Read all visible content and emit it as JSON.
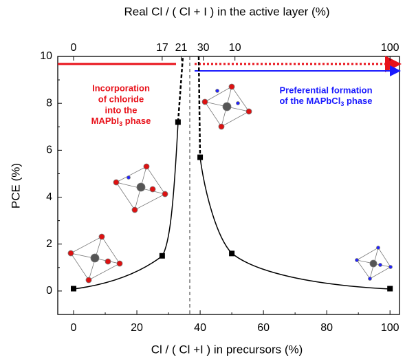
{
  "chart_data": {
    "type": "scatter",
    "title": "Real Cl / ( Cl + I ) in the active layer (%)",
    "x_label": "Cl / ( Cl +I ) in precursors (%)",
    "y_label": "PCE (%)",
    "x": [
      0,
      28,
      33,
      40,
      50,
      100
    ],
    "values": [
      0.1,
      1.5,
      7.2,
      5.7,
      1.6,
      0.1
    ],
    "color": "#000000",
    "xlim": [
      -5,
      103
    ],
    "ylim": [
      -1,
      10
    ],
    "xticks": [
      0,
      20,
      40,
      60,
      80,
      100
    ],
    "yticks": [
      0,
      2,
      4,
      6,
      8,
      10
    ],
    "x2ticks": [
      0,
      {
        "value": 28,
        "label": "17"
      },
      {
        "value": 34,
        "label": "21"
      },
      {
        "value": 41,
        "label": "30"
      },
      {
        "value": 51,
        "label": "10"
      },
      100
    ],
    "annotations": [
      {
        "lines": [
          "Incorporation",
          "of chloride",
          "into the"
        ],
        "formula": [
          "MAPbI",
          "3",
          " phase"
        ],
        "color": "#e8111a"
      },
      {
        "lines": [
          "Preferential formation"
        ],
        "formula": [
          "of the MAPbCl",
          "3",
          " phase"
        ],
        "color": "#1a1aff"
      }
    ]
  }
}
